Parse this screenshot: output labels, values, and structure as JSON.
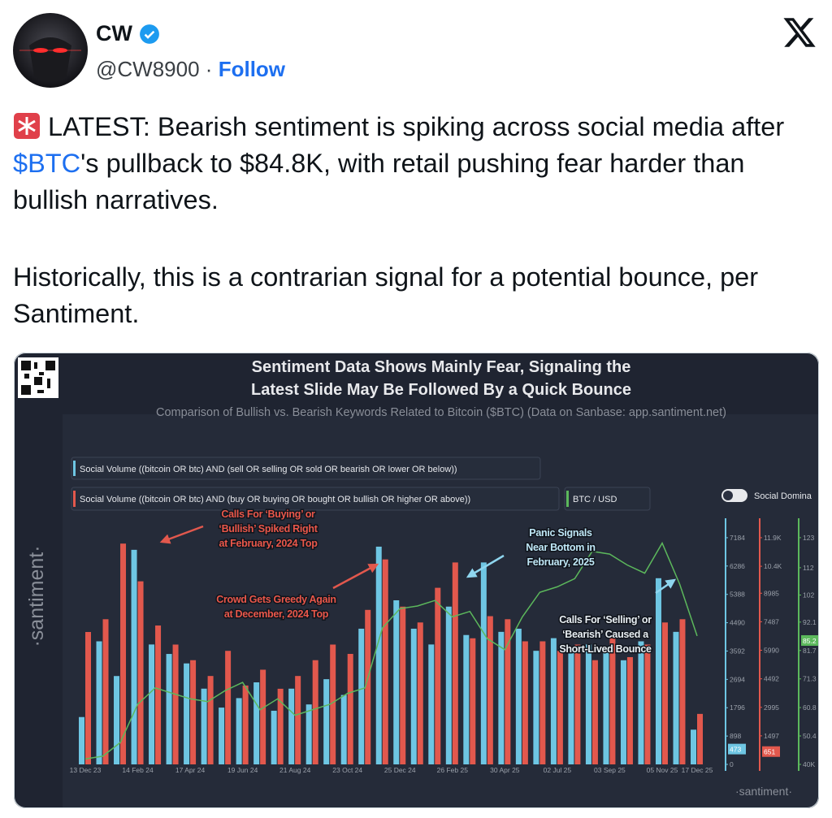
{
  "post": {
    "author": {
      "name": "CW",
      "handle": "@CW8900",
      "separator": "·",
      "follow": "Follow"
    },
    "text": [
      {
        "parts": [
          "LATEST: Bearish sentiment is spiking across social media after ",
          "$BTC",
          "'s pullback to $84.8K, with retail pushing fear harder than bullish narratives."
        ]
      },
      {
        "parts": [
          "Historically, this is a contrarian signal for a potential bounce, per Santiment."
        ]
      }
    ],
    "media": {
      "chart_data": {
        "type": "bar",
        "title": [
          "Sentiment Data Shows Mainly Fear, Signaling the",
          "Latest Slide May Be Followed By a Quick Bounce"
        ],
        "subtitle": "Comparison of Bullish vs. Bearish Keywords Related to Bitcoin ($BTC) (Data on Sanbase: app.santiment.net)",
        "categories": [
          "13 Dec 23",
          null,
          null,
          "14 Feb 24",
          null,
          null,
          "17 Apr 24",
          null,
          null,
          "19 Jun 24",
          null,
          null,
          "21 Aug 24",
          null,
          null,
          "23 Oct 24",
          null,
          null,
          "25 Dec 24",
          null,
          null,
          "26 Feb 25",
          null,
          null,
          "30 Apr 25",
          null,
          null,
          "02 Jul 25",
          null,
          null,
          "03 Sep 25",
          null,
          null,
          "05 Nov 25",
          null,
          "17 Dec 25"
        ],
        "series": [
          {
            "name": "Social Volume ((bitcoin OR btc) AND (sell OR selling OR sold OR bearish OR lower OR below))",
            "color": "#6ec6e3",
            "axis": "y",
            "current": 473,
            "values": [
              1500,
              3900,
              2800,
              6800,
              3800,
              3500,
              3200,
              2400,
              1800,
              2100,
              2600,
              1700,
              2400,
              1900,
              2700,
              2200,
              4300,
              6900,
              5200,
              4300,
              3800,
              5000,
              4100,
              6400,
              4200,
              4300,
              3600,
              4000,
              3700,
              3800,
              3600,
              3300,
              3900,
              5900,
              4200,
              1100
            ]
          },
          {
            "name": "Social Volume ((bitcoin OR btc) AND (buy OR buying OR bought OR bullish OR higher OR above))",
            "color": "#e2584d",
            "axis": "y2",
            "current": 651,
            "values": [
              6950,
              7620,
              11590,
              9610,
              7290,
              6290,
              5470,
              4640,
              5960,
              4140,
              4970,
              3970,
              4640,
              5470,
              6290,
              5800,
              8110,
              10760,
              8280,
              7450,
              9270,
              10600,
              6620,
              7780,
              7620,
              6460,
              6460,
              5960,
              6290,
              5470,
              6620,
              5630,
              6290,
              7450,
              7620,
              2650
            ]
          },
          {
            "name": "BTC / USD",
            "color": "#5cb85c",
            "axis": "y3",
            "type": "line",
            "current": 85.2,
            "values": [
              42,
              43,
              48,
              62,
              68,
              66,
              64,
              63,
              67,
              70,
              60,
              64,
              58,
              60,
              62,
              66,
              68,
              90,
              97,
              98,
              100,
              94,
              96,
              86,
              82,
              94,
              103,
              105,
              108,
              118,
              117,
              113,
              110,
              121,
              106,
              87
            ]
          }
        ],
        "ylim": [
          0,
          7800
        ],
        "yticks": [
          0,
          898,
          1796,
          2694,
          3592,
          4490,
          5388,
          6286,
          7184
        ],
        "y2lim": [
          0,
          12920
        ],
        "y2ticks": [
          1497,
          2995,
          4492,
          5990,
          7487,
          8985,
          {
            "value": 10400,
            "label": "10.4K"
          },
          {
            "value": 11900,
            "label": "11.9K"
          }
        ],
        "y3lim": [
          40,
          130.1
        ],
        "y3ticks": [
          {
            "value": 40,
            "label": "40K"
          },
          50.4,
          60.8,
          71.3,
          81.7,
          92.1,
          102,
          112,
          123
        ],
        "annotations": [
          {
            "lines": [
              "Calls For ‘Buying’ or",
              "‘Bullish’ Spiked Right",
              "at February, 2024 Top"
            ]
          },
          {
            "lines": [
              "Crowd Gets Greedy Again",
              "at December, 2024 Top"
            ]
          },
          {
            "lines": [
              "Panic Signals",
              "Near Bottom in",
              "February, 2025"
            ]
          },
          {
            "lines": [
              "Calls For ‘Selling’ or",
              "‘Bearish’ Caused a",
              "Short-Lived Bounce"
            ]
          }
        ],
        "toggle_label": "Social Domina",
        "watermark": "·santiment·"
      }
    }
  }
}
